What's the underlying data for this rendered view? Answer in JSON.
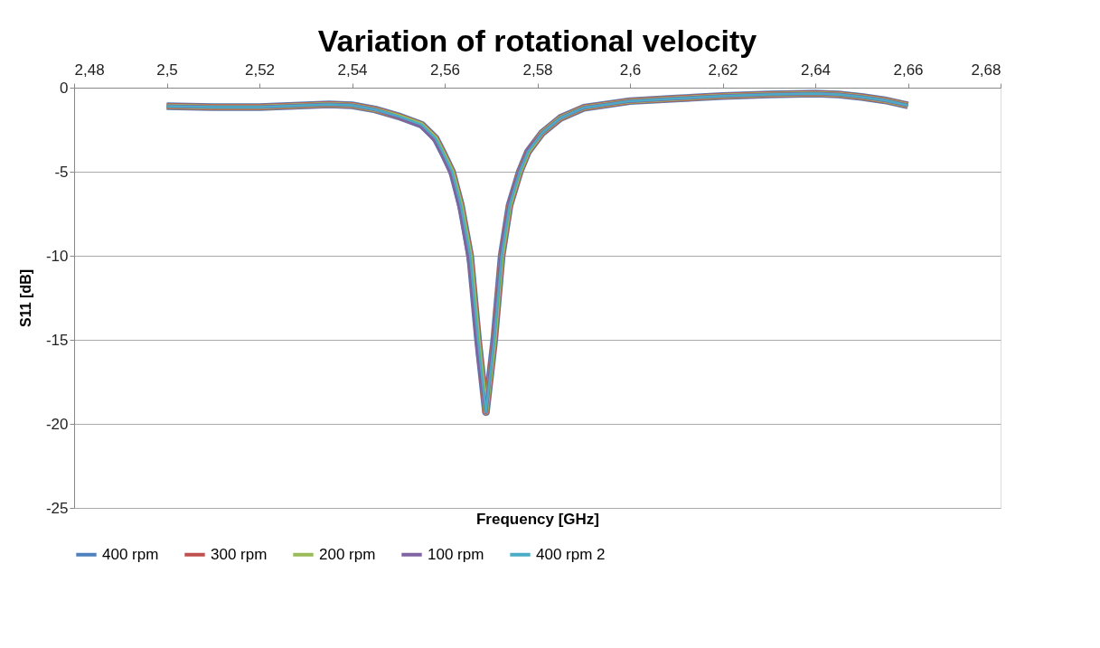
{
  "chart_data": {
    "type": "line",
    "title": "Variation of rotational velocity",
    "xlabel": "Frequency [GHz]",
    "ylabel": "S11 [dB]",
    "x": [
      2.5,
      2.51,
      2.52,
      2.53,
      2.535,
      2.54,
      2.545,
      2.55,
      2.555,
      2.558,
      2.5595,
      2.5616,
      2.5635,
      2.5655,
      2.5672,
      2.5689,
      2.5707,
      2.5723,
      2.574,
      2.5762,
      2.578,
      2.581,
      2.585,
      2.59,
      2.6,
      2.61,
      2.62,
      2.63,
      2.64,
      2.645,
      2.65,
      2.655,
      2.66
    ],
    "series": [
      {
        "name": "400 rpm",
        "color": "#4f81bd",
        "values": [
          -1.1,
          -1.15,
          -1.15,
          -1.05,
          -1.0,
          -1.05,
          -1.3,
          -1.7,
          -2.2,
          -3.0,
          -3.8,
          -5.0,
          -7.0,
          -10.0,
          -15.0,
          -19.3,
          -15.0,
          -10.0,
          -7.0,
          -5.0,
          -3.8,
          -2.7,
          -1.8,
          -1.2,
          -0.8,
          -0.65,
          -0.5,
          -0.4,
          -0.35,
          -0.4,
          -0.55,
          -0.75,
          -1.05
        ]
      },
      {
        "name": "300 rpm",
        "color": "#c0504d",
        "values": [
          -1.1,
          -1.15,
          -1.15,
          -1.05,
          -1.0,
          -1.05,
          -1.3,
          -1.7,
          -2.2,
          -3.0,
          -3.8,
          -5.0,
          -7.0,
          -10.0,
          -15.0,
          -19.3,
          -15.0,
          -10.0,
          -7.0,
          -5.0,
          -3.8,
          -2.7,
          -1.8,
          -1.2,
          -0.8,
          -0.65,
          -0.5,
          -0.4,
          -0.35,
          -0.4,
          -0.55,
          -0.75,
          -1.05
        ]
      },
      {
        "name": "200 rpm",
        "color": "#9bbb59",
        "values": [
          -1.1,
          -1.15,
          -1.15,
          -1.05,
          -1.0,
          -1.05,
          -1.3,
          -1.7,
          -2.2,
          -3.0,
          -3.8,
          -5.0,
          -7.0,
          -10.0,
          -15.0,
          -19.3,
          -15.0,
          -10.0,
          -7.0,
          -5.0,
          -3.8,
          -2.7,
          -1.8,
          -1.2,
          -0.8,
          -0.65,
          -0.5,
          -0.4,
          -0.35,
          -0.4,
          -0.55,
          -0.75,
          -1.05
        ]
      },
      {
        "name": "100 rpm",
        "color": "#8064a2",
        "values": [
          -1.1,
          -1.15,
          -1.15,
          -1.05,
          -1.0,
          -1.05,
          -1.3,
          -1.75,
          -2.3,
          -3.2,
          -4.0,
          -5.3,
          -7.5,
          -10.8,
          -16.0,
          -19.3,
          -14.5,
          -9.6,
          -6.8,
          -4.9,
          -3.7,
          -2.7,
          -1.8,
          -1.2,
          -0.8,
          -0.65,
          -0.5,
          -0.4,
          -0.35,
          -0.4,
          -0.55,
          -0.75,
          -1.05
        ]
      },
      {
        "name": "400 rpm 2",
        "color": "#4bacc6",
        "values": [
          -1.1,
          -1.15,
          -1.15,
          -1.05,
          -1.0,
          -1.05,
          -1.3,
          -1.7,
          -2.2,
          -3.0,
          -3.8,
          -5.0,
          -7.0,
          -10.0,
          -15.0,
          -19.3,
          -15.0,
          -10.0,
          -7.0,
          -5.0,
          -3.8,
          -2.7,
          -1.8,
          -1.2,
          -0.8,
          -0.65,
          -0.5,
          -0.4,
          -0.35,
          -0.4,
          -0.55,
          -0.75,
          -1.05
        ]
      }
    ],
    "xlim": [
      2.48,
      2.68
    ],
    "xticks": [
      {
        "value": 2.48,
        "label": "2,48"
      },
      {
        "value": 2.5,
        "label": "2,5"
      },
      {
        "value": 2.52,
        "label": "2,52"
      },
      {
        "value": 2.54,
        "label": "2,54"
      },
      {
        "value": 2.56,
        "label": "2,56"
      },
      {
        "value": 2.58,
        "label": "2,58"
      },
      {
        "value": 2.6,
        "label": "2,6"
      },
      {
        "value": 2.62,
        "label": "2,62"
      },
      {
        "value": 2.64,
        "label": "2,64"
      },
      {
        "value": 2.66,
        "label": "2,66"
      },
      {
        "value": 2.68,
        "label": "2,68"
      }
    ],
    "ylim": [
      -25,
      0
    ],
    "yticks": [
      -25,
      -20,
      -15,
      -10,
      -5,
      0
    ],
    "grid": "y",
    "legend": "bottom",
    "marker": "none",
    "line_style": "solid"
  }
}
